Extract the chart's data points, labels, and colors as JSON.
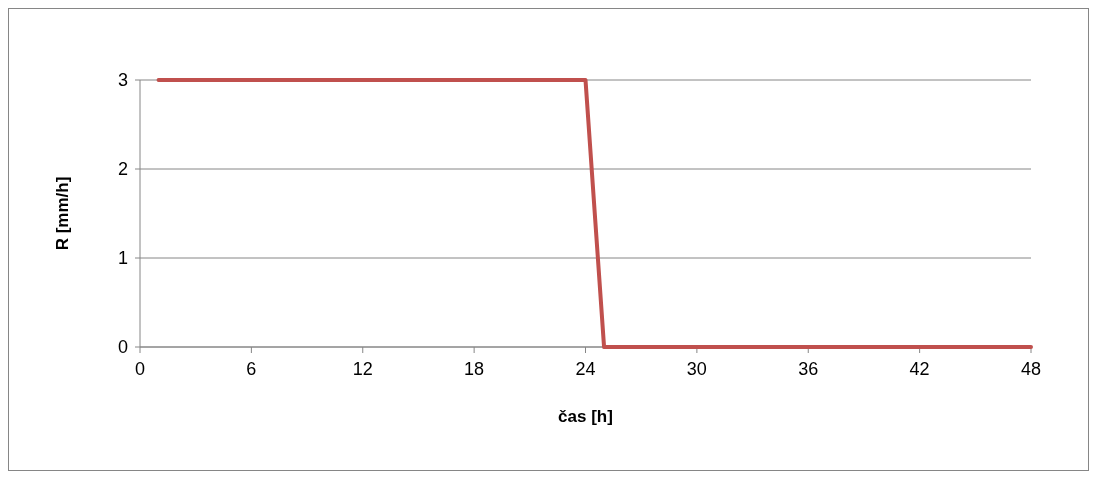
{
  "chart_data": {
    "type": "line",
    "xlabel": "čas [h]",
    "ylabel": "R [mm/h]",
    "x": [
      1,
      24,
      25,
      48
    ],
    "series": [
      {
        "color": "#c0504d",
        "values": [
          3,
          3,
          0,
          0
        ]
      }
    ],
    "xlim": [
      0,
      48
    ],
    "xticks": [
      0,
      6,
      12,
      18,
      24,
      30,
      36,
      42,
      48
    ],
    "ylim": [
      0,
      3
    ],
    "yticks": [
      0,
      1,
      2,
      3
    ],
    "grid": "y",
    "marker": "none",
    "line_style": "solid"
  }
}
